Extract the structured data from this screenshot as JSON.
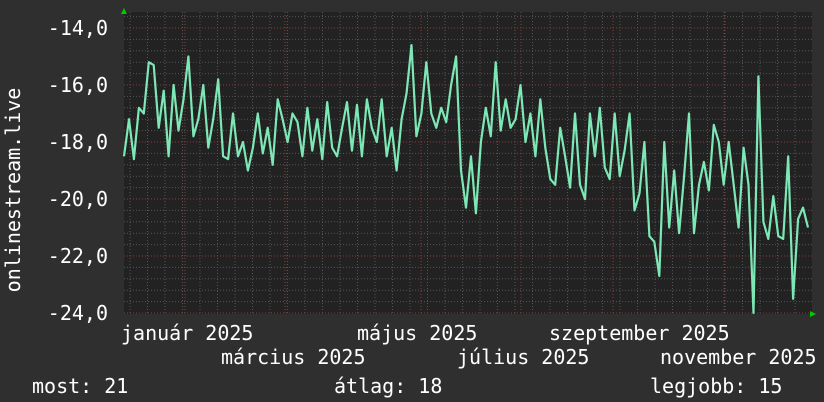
{
  "chart_data": {
    "type": "line",
    "ylabel": "onlinestream.live",
    "ylim": [
      -24.0,
      -13.5
    ],
    "yticks": [
      "-14,0",
      "-16,0",
      "-18,0",
      "-20,0",
      "-22,0",
      "-24,0"
    ],
    "ytick_values": [
      -14,
      -16,
      -18,
      -20,
      -22,
      -24
    ],
    "xtick_labels": [
      "január 2025",
      "március 2025",
      "május 2025",
      "július 2025",
      "szeptember 2025",
      "november 2025"
    ],
    "grid": true,
    "colors": {
      "line": "#7de8b6",
      "background": "#2f2f2f",
      "plot": "#222222",
      "major_grid": "#8a3a3a",
      "minor_grid": "#555555",
      "arrow": "#00cc00"
    },
    "values": [
      -18.5,
      -17.2,
      -18.6,
      -16.8,
      -17.0,
      -15.2,
      -15.3,
      -17.5,
      -16.2,
      -18.5,
      -16.0,
      -17.6,
      -16.5,
      -15.0,
      -17.8,
      -17.2,
      -16.0,
      -18.2,
      -17.2,
      -15.8,
      -18.5,
      -18.6,
      -17.0,
      -18.5,
      -18.0,
      -19.0,
      -18.2,
      -17.0,
      -18.4,
      -17.5,
      -18.8,
      -16.5,
      -17.2,
      -18.0,
      -17.0,
      -17.3,
      -18.5,
      -16.8,
      -18.3,
      -17.2,
      -18.6,
      -16.6,
      -18.2,
      -18.5,
      -17.5,
      -16.6,
      -18.3,
      -16.7,
      -18.5,
      -16.5,
      -17.5,
      -18.0,
      -16.5,
      -18.5,
      -17.5,
      -19.0,
      -17.2,
      -16.3,
      -14.6,
      -17.8,
      -17.0,
      -15.2,
      -17.0,
      -17.5,
      -16.8,
      -17.3,
      -16.0,
      -15.0,
      -19.0,
      -20.3,
      -18.5,
      -20.5,
      -18.0,
      -16.8,
      -17.8,
      -15.2,
      -17.6,
      -16.5,
      -17.5,
      -17.2,
      -16.0,
      -18.0,
      -17.0,
      -18.5,
      -16.5,
      -18.2,
      -19.3,
      -19.5,
      -17.5,
      -18.5,
      -19.6,
      -17.0,
      -19.5,
      -20.0,
      -17.0,
      -18.5,
      -16.8,
      -18.9,
      -19.3,
      -17.0,
      -19.2,
      -18.3,
      -17.0,
      -20.4,
      -19.8,
      -18.0,
      -21.3,
      -21.5,
      -22.7,
      -18.0,
      -21.0,
      -19.0,
      -21.2,
      -19.2,
      -17.0,
      -21.2,
      -19.5,
      -18.7,
      -19.7,
      -17.4,
      -18.0,
      -19.5,
      -18.0,
      -19.5,
      -21.0,
      -18.2,
      -19.5,
      -24.0,
      -15.7,
      -20.8,
      -21.4,
      -19.9,
      -21.3,
      -21.4,
      -18.5,
      -23.5,
      -20.7,
      -20.3,
      -21.0
    ]
  },
  "legend": {
    "current": "most: 21",
    "average": "átlag: 18",
    "best": "legjobb: 15"
  }
}
